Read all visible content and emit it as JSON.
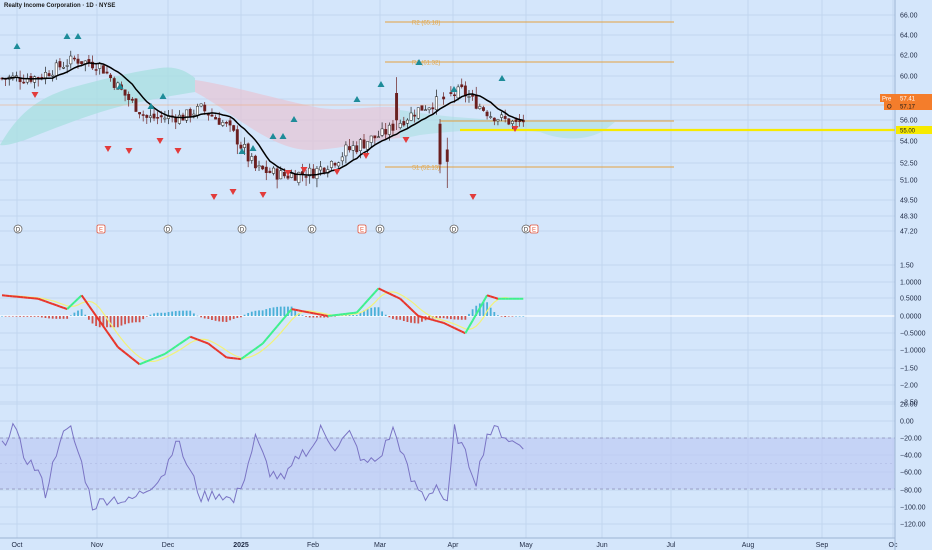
{
  "header": {
    "title": "Realty Income Corporation · 1D · NYSE"
  },
  "colors": {
    "background": "#d4e6fb",
    "grid": "#c2d6ef",
    "candle_up": "#1f1f1f",
    "candle_down": "#6b1f1f",
    "ma_line": "#000000",
    "cloud_green": "#a8dfe0",
    "cloud_red": "#e7c4d4",
    "pivot_line": "#e3a341",
    "support_line": "#f7ea00",
    "arrow_up": "#1e8c99",
    "arrow_down": "#e23b3b",
    "macd_up": "#3ef08d",
    "macd_down": "#e8352a",
    "signal": "#f2f27a",
    "hist_pos": "#4bb0d8",
    "hist_neg": "#d0524b",
    "rsi_line": "#7a74c4",
    "rsi_band": "#bfcaf4",
    "price_tag": "#f47d2b"
  },
  "x_axis": {
    "labels": [
      "Oct",
      "Nov",
      "Dec",
      "2025",
      "Feb",
      "Mar",
      "Apr",
      "May",
      "Jun",
      "Jul",
      "Aug",
      "Sep",
      "Oc"
    ]
  },
  "price_axis": {
    "ticks": [
      "66.00",
      "64.00",
      "62.00",
      "60.00",
      "58.00",
      "56.00",
      "55.00",
      "54.00",
      "52.50",
      "51.00",
      "49.50",
      "48.30",
      "47.20"
    ],
    "pre_label": "Pre",
    "pre_value": "57.41",
    "last_label": "O",
    "last_value": "57.17",
    "support_value": "55.00"
  },
  "pivots": [
    {
      "label": "R2 (65.18)"
    },
    {
      "label": "R1 (61.32)"
    },
    {
      "label": "S1 (52.13)"
    }
  ],
  "event_markers": [
    "D",
    "E",
    "D",
    "D",
    "D",
    "E",
    "D",
    "D",
    "D",
    "E"
  ],
  "macd_axis": {
    "ticks": [
      "1.50",
      "1.0000",
      "0.5000",
      "0.0000",
      "−0.5000",
      "−1.0000",
      "−1.50",
      "−2.00",
      "−2.50"
    ]
  },
  "rsi_axis": {
    "ticks": [
      "20.00",
      "0.00",
      "−20.00",
      "−40.00",
      "−60.00",
      "−80.00",
      "−100.00",
      "−120.00"
    ]
  },
  "chart_data": [
    {
      "type": "candlestick",
      "series": [
        {
          "kind": "ohlc",
          "values": []
        },
        {
          "kind": "moving_average",
          "values": []
        }
      ],
      "pivot_levels": {
        "R2": 65.18,
        "R1": 61.32,
        "S1": 52.13
      },
      "support_level": 55.0,
      "price_range": [
        47.2,
        66.0
      ],
      "last_price": 57.17,
      "premarket_price": 57.41
    },
    {
      "type": "line",
      "series": [
        {
          "kind": "macd",
          "values": []
        },
        {
          "kind": "signal",
          "values": []
        },
        {
          "kind": "histogram",
          "values": []
        }
      ],
      "ylim": [
        -2.5,
        1.5
      ]
    },
    {
      "type": "line",
      "series": [
        {
          "kind": "oscillator",
          "values": []
        }
      ],
      "band": [
        -80,
        -20
      ],
      "ylim": [
        -120,
        20
      ]
    }
  ]
}
